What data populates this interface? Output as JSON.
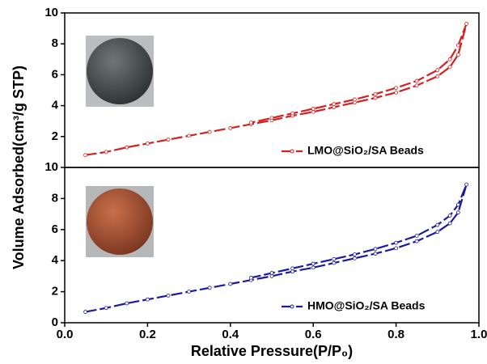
{
  "chart_data": [
    {
      "type": "line",
      "ylabel": "Volume Adsorbed(cm³/g STP)",
      "xlim": [
        0,
        1
      ],
      "ylim": [
        0,
        10
      ],
      "yticks": [
        2,
        4,
        6,
        8,
        10
      ],
      "legend": "lower right",
      "x": [
        0.05,
        0.1,
        0.15,
        0.2,
        0.25,
        0.3,
        0.35,
        0.4,
        0.45,
        0.5,
        0.55,
        0.6,
        0.65,
        0.7,
        0.75,
        0.8,
        0.85,
        0.9,
        0.93,
        0.95,
        0.97,
        0.95,
        0.93,
        0.9,
        0.85,
        0.8,
        0.75,
        0.7,
        0.65,
        0.6,
        0.55,
        0.5,
        0.45
      ],
      "series": [
        {
          "name": "LMO@SiO₂/SA Beads",
          "color": "#d42020",
          "values": [
            0.8,
            1.0,
            1.3,
            1.55,
            1.8,
            2.05,
            2.3,
            2.55,
            2.8,
            3.05,
            3.35,
            3.6,
            3.9,
            4.2,
            4.5,
            4.85,
            5.3,
            5.9,
            6.5,
            7.3,
            9.3,
            7.9,
            7.0,
            6.3,
            5.6,
            5.15,
            4.75,
            4.4,
            4.1,
            3.8,
            3.5,
            3.2,
            2.9
          ]
        }
      ]
    },
    {
      "type": "line",
      "xlabel": "Relative Pressure(P/P₀)",
      "xlim": [
        0,
        1
      ],
      "ylim": [
        0,
        10
      ],
      "xticks": [
        {
          "value": 0,
          "label": "0.0"
        },
        0.2,
        0.4,
        0.6,
        0.8,
        {
          "value": 1,
          "label": "1.0"
        }
      ],
      "yticks": [
        0,
        2,
        4,
        6,
        8,
        10
      ],
      "legend": "lower right",
      "x": [
        0.05,
        0.1,
        0.15,
        0.2,
        0.25,
        0.3,
        0.35,
        0.4,
        0.45,
        0.5,
        0.55,
        0.6,
        0.65,
        0.7,
        0.75,
        0.8,
        0.85,
        0.9,
        0.93,
        0.95,
        0.97,
        0.95,
        0.93,
        0.9,
        0.85,
        0.8,
        0.75,
        0.7,
        0.65,
        0.6,
        0.55,
        0.5,
        0.45
      ],
      "series": [
        {
          "name": "HMO@SiO₂/SA Beads",
          "color": "#1a1a9e",
          "values": [
            0.7,
            0.95,
            1.25,
            1.5,
            1.75,
            2.0,
            2.25,
            2.5,
            2.75,
            3.0,
            3.3,
            3.55,
            3.85,
            4.15,
            4.45,
            4.8,
            5.25,
            5.85,
            6.4,
            7.1,
            8.9,
            7.6,
            6.9,
            6.3,
            5.6,
            5.15,
            4.75,
            4.4,
            4.1,
            3.8,
            3.5,
            3.2,
            2.9
          ]
        }
      ]
    }
  ]
}
